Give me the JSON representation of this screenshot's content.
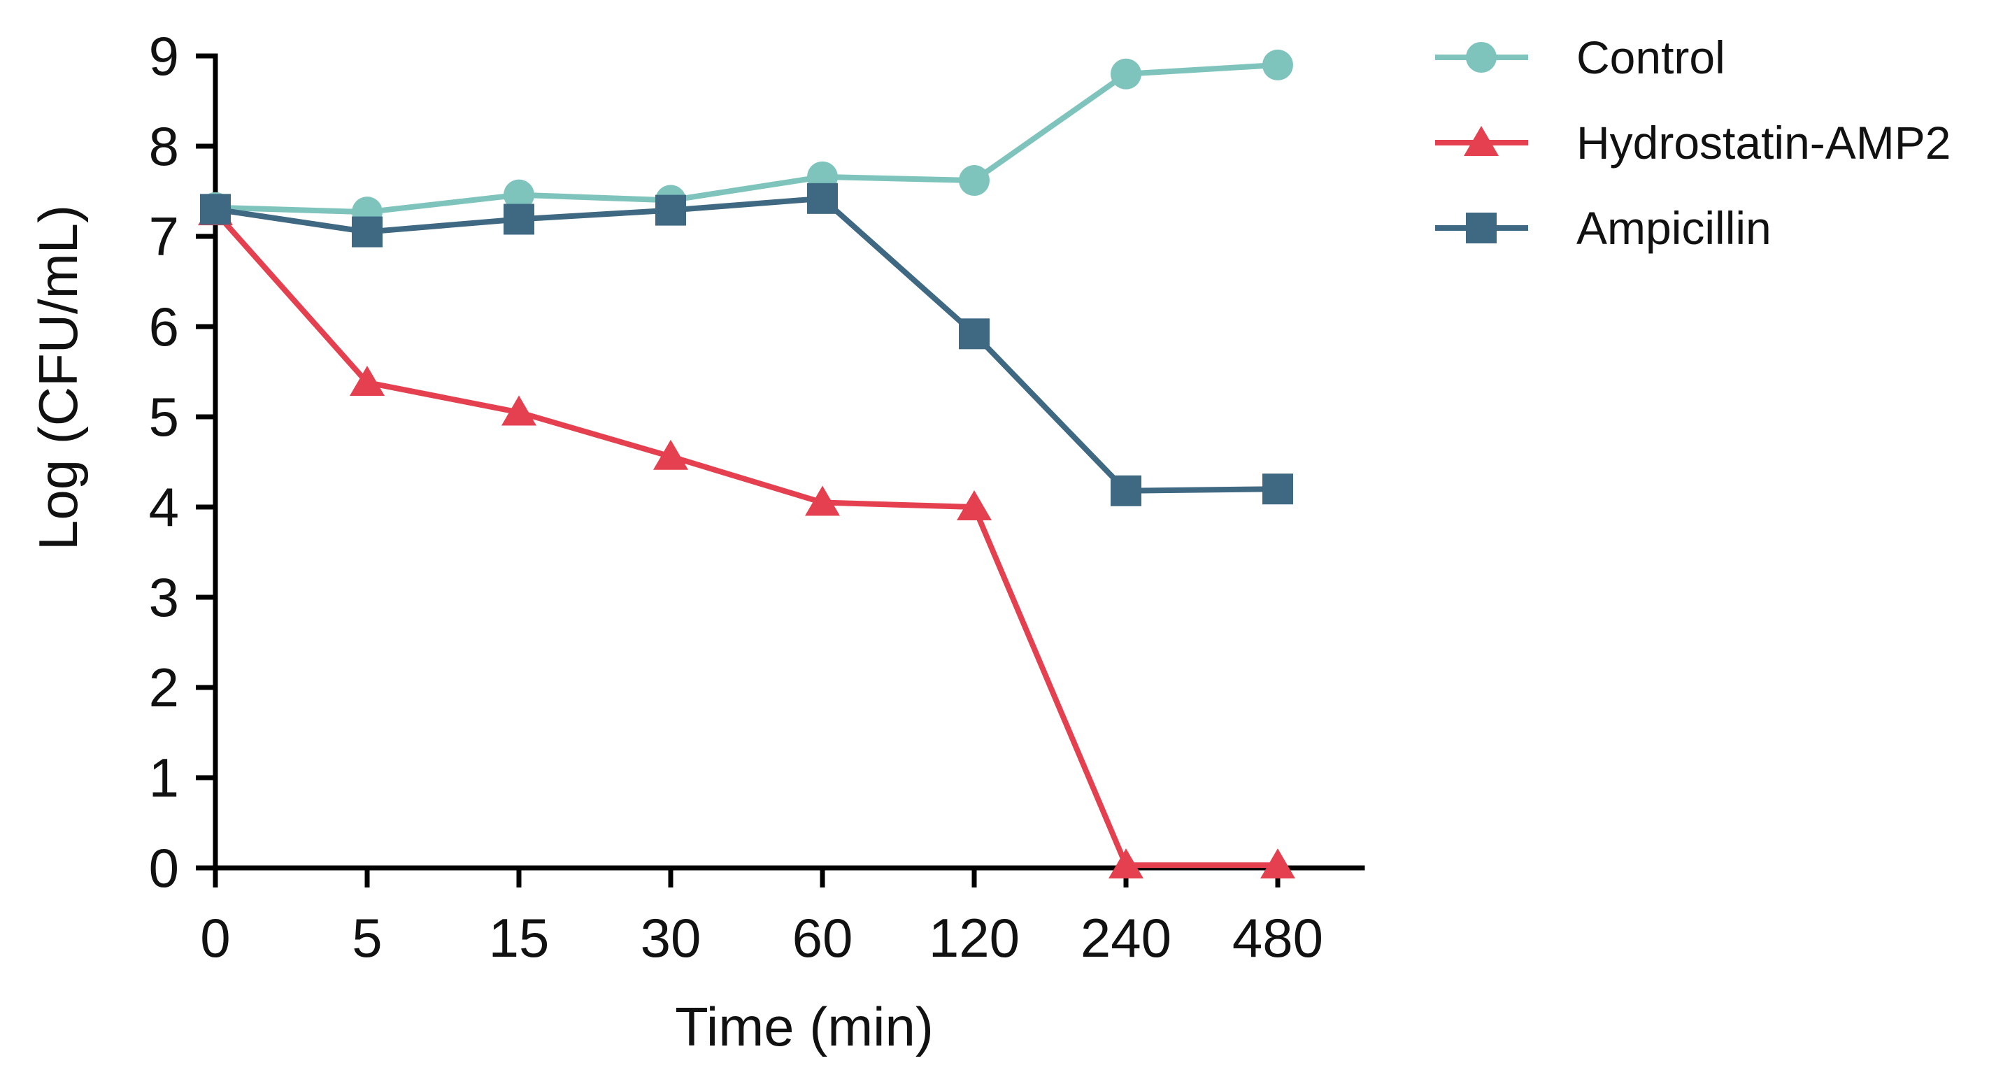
{
  "chart_data": {
    "type": "line",
    "title": "",
    "xlabel": "Time (min)",
    "ylabel": "Log (CFU/mL)",
    "categories": [
      "0",
      "5",
      "15",
      "30",
      "60",
      "120",
      "240",
      "480"
    ],
    "ylim": [
      0,
      9
    ],
    "yticks": [
      "0",
      "1",
      "2",
      "3",
      "4",
      "5",
      "6",
      "7",
      "8",
      "9"
    ],
    "grid": false,
    "legend_position": "top-right",
    "series": [
      {
        "name": "Control",
        "marker": "circle",
        "color": "#7ec4bd",
        "values": [
          7.32,
          7.27,
          7.46,
          7.4,
          7.66,
          7.62,
          8.8,
          8.9
        ]
      },
      {
        "name": "Hydrostatin-AMP2",
        "marker": "triangle",
        "color": "#e5404f",
        "values": [
          7.27,
          5.38,
          5.05,
          4.56,
          4.05,
          4.0,
          0.03,
          0.03
        ]
      },
      {
        "name": "Ampicillin",
        "marker": "square",
        "color": "#3f6882",
        "values": [
          7.3,
          7.05,
          7.19,
          7.29,
          7.42,
          5.92,
          4.18,
          4.2
        ]
      }
    ]
  }
}
